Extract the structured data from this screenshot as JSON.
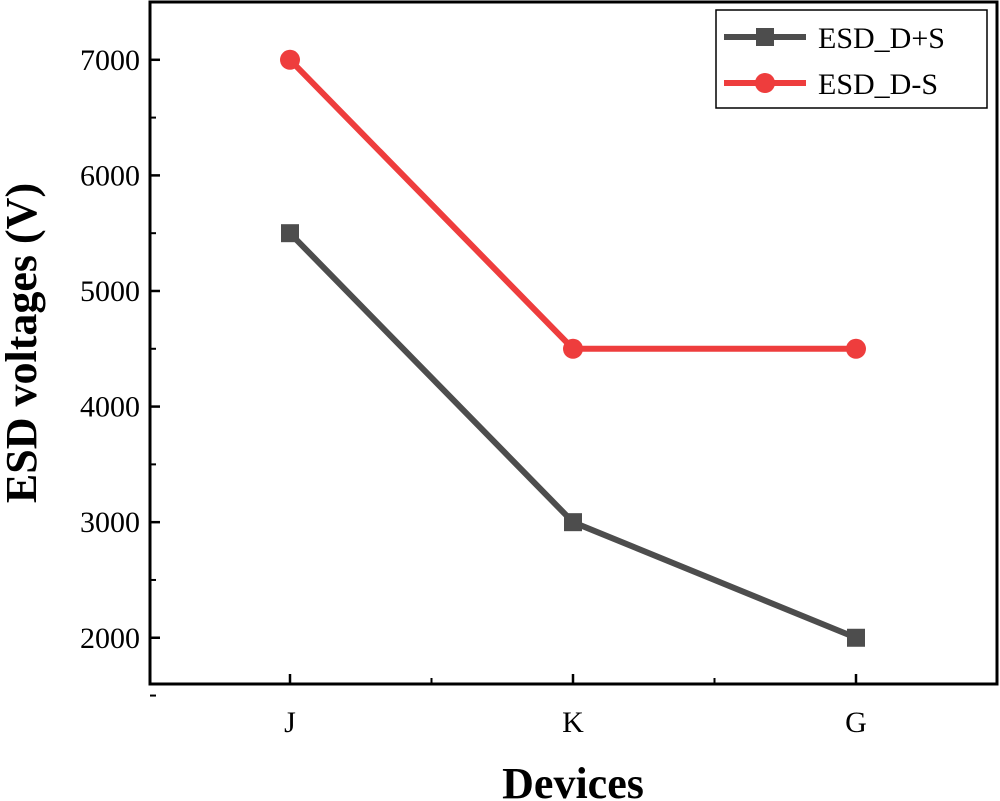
{
  "chart_data": {
    "type": "line",
    "title": "",
    "xlabel": "Devices",
    "ylabel": "ESD voltages (V)",
    "categories": [
      "J",
      "K",
      "G"
    ],
    "ylim": [
      1600,
      7500
    ],
    "yticks": [
      2000,
      3000,
      4000,
      5000,
      6000,
      7000
    ],
    "grid": false,
    "legend_position": "top-right",
    "series": [
      {
        "name": "ESD_D+S",
        "values": [
          5500,
          3000,
          2000
        ],
        "color": "#4d4d4d",
        "marker": "square"
      },
      {
        "name": "ESD_D-S",
        "values": [
          7000,
          4500,
          4500
        ],
        "color": "#ee3d3d",
        "marker": "circle"
      }
    ]
  }
}
